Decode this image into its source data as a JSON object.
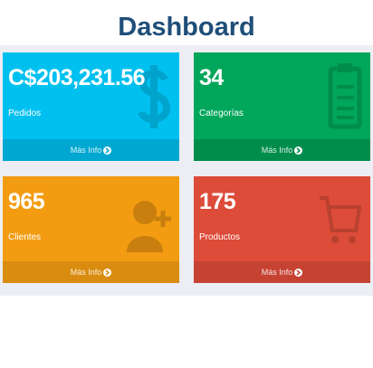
{
  "header": {
    "title": "Dashboard"
  },
  "cards": [
    {
      "value": "C$203,231.56",
      "label": "Pedidos",
      "link": "Más Info"
    },
    {
      "value": 34,
      "label": "Categorías",
      "link": "Más Info"
    },
    {
      "value": 965,
      "label": "Clientes",
      "link": "Más Info"
    },
    {
      "value": 175,
      "label": "Productos",
      "link": "Más Info"
    }
  ]
}
